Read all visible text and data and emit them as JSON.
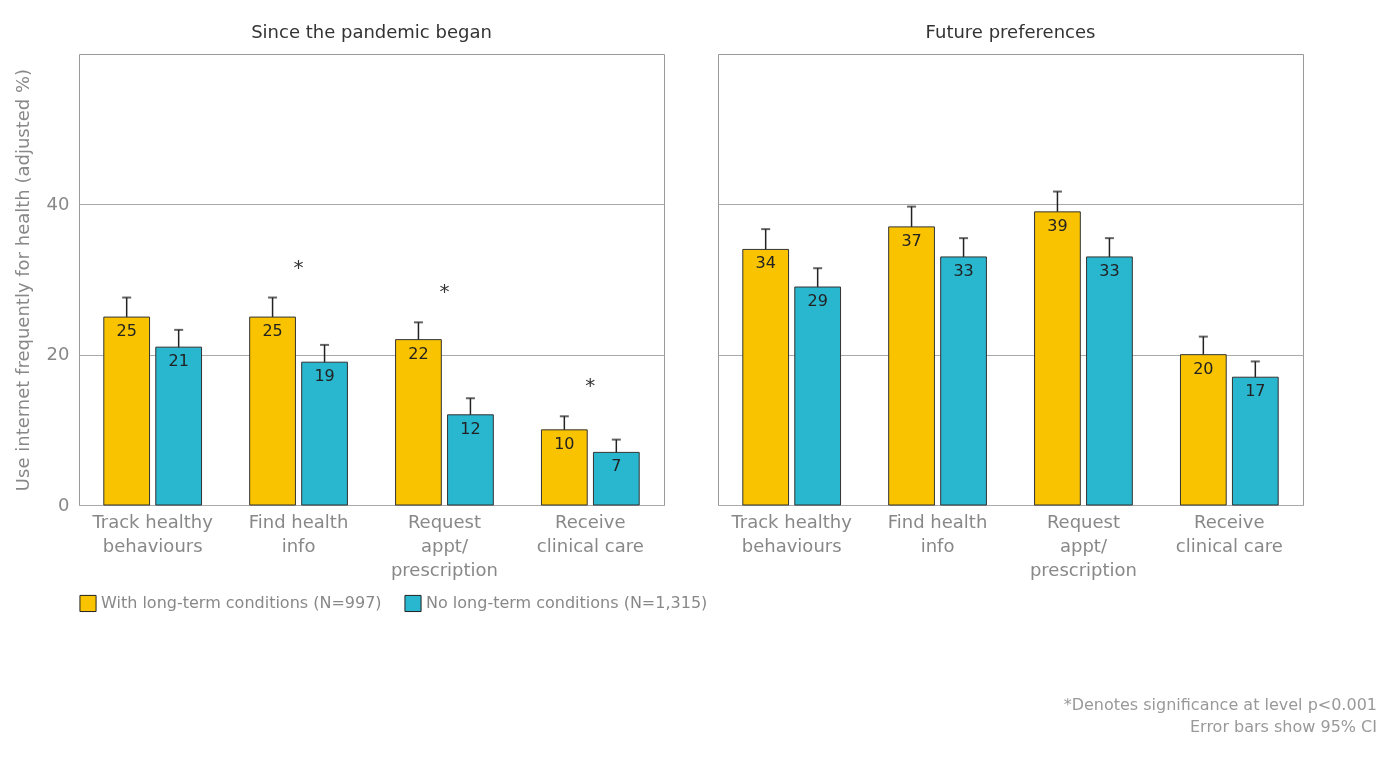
{
  "chart_data": [
    {
      "type": "bar",
      "title": "Since the pandemic began",
      "ylabel": "Use internet frequently for health (adjusted %)",
      "categories": [
        "Track healthy\nbehaviours",
        "Find health\ninfo",
        "Request\nappt/\nprescription",
        "Receive\nclinical care"
      ],
      "ylim": [
        0,
        60
      ],
      "yticks": [
        0,
        20,
        40
      ],
      "grid": "y",
      "data_labels": true,
      "legend": "bottom",
      "series": [
        {
          "name": "With long-term conditions (N=997)",
          "color": "#f9c300",
          "values": [
            25,
            25,
            22,
            10
          ],
          "errors": [
            2.6,
            2.6,
            2.3,
            1.8
          ]
        },
        {
          "name": "No long-term conditions (N=1,315)",
          "color": "#29b6cf",
          "values": [
            21,
            19,
            12,
            7
          ],
          "errors": [
            2.3,
            2.3,
            2.2,
            1.7
          ]
        }
      ],
      "annotations": [
        "*",
        "*",
        "*"
      ]
    },
    {
      "type": "bar",
      "title": "Future preferences",
      "categories": [
        "Track healthy\nbehaviours",
        "Find health\ninfo",
        "Request\nappt/\nprescription",
        "Receive\nclinical care"
      ],
      "ylim": [
        0,
        60
      ],
      "yticks": [
        0,
        20,
        40
      ],
      "grid": "y",
      "data_labels": true,
      "legend": "bottom",
      "tick_labels": "x",
      "series": [
        {
          "name": "With long-term conditions (N=997)",
          "color": "#f9c300",
          "values": [
            34,
            37,
            39,
            20
          ],
          "errors": [
            2.7,
            2.7,
            2.7,
            2.4
          ]
        },
        {
          "name": "No long-term conditions (N=1,315)",
          "color": "#29b6cf",
          "values": [
            29,
            33,
            33,
            17
          ],
          "errors": [
            2.5,
            2.5,
            2.5,
            2.1
          ]
        }
      ],
      "annotations": [
        "*Denotes significance at level p<0.001",
        "Error bars show 95% CI"
      ]
    }
  ]
}
